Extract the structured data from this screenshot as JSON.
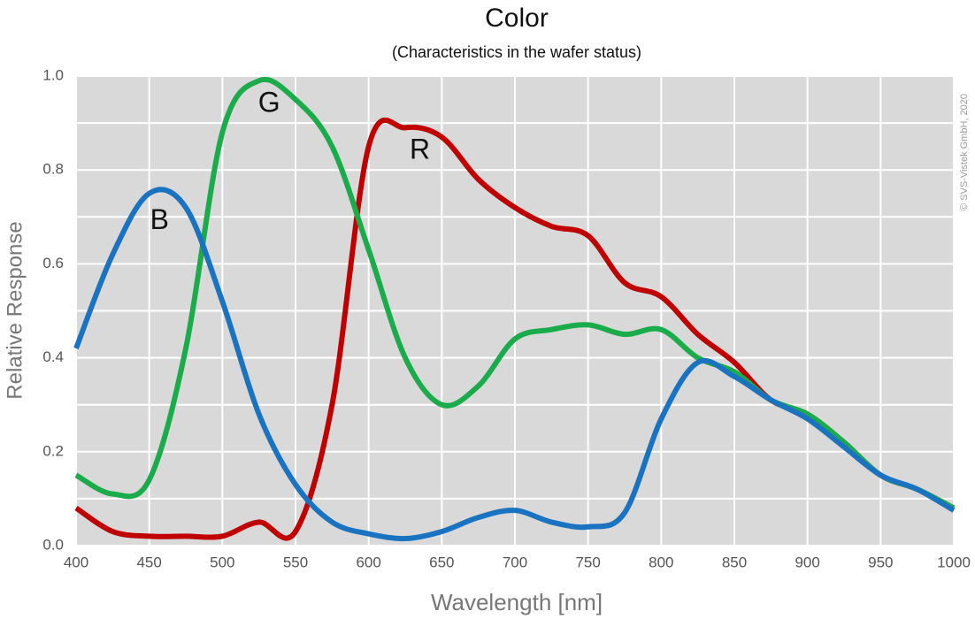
{
  "chart_data": {
    "type": "line",
    "title": "Color",
    "subtitle": "(Characteristics in the wafer status)",
    "x_label": "Wavelength [nm]",
    "y_label": "Relative Response",
    "copyright": "© SVS-Vistek GmbH, 2020",
    "x": [
      400,
      425,
      450,
      475,
      500,
      525,
      550,
      575,
      600,
      625,
      650,
      675,
      700,
      725,
      750,
      775,
      800,
      825,
      850,
      875,
      900,
      925,
      950,
      975,
      1000
    ],
    "series": [
      {
        "name": "R",
        "color": "#c00000",
        "values": [
          0.08,
          0.03,
          0.02,
          0.02,
          0.02,
          0.05,
          0.03,
          0.3,
          0.85,
          0.89,
          0.87,
          0.78,
          0.72,
          0.68,
          0.66,
          0.56,
          0.53,
          0.45,
          0.39,
          0.31,
          0.28,
          0.22,
          0.15,
          0.12,
          0.08
        ]
      },
      {
        "name": "G",
        "color": "#1aab4a",
        "values": [
          0.15,
          0.11,
          0.14,
          0.42,
          0.88,
          0.99,
          0.95,
          0.85,
          0.63,
          0.4,
          0.3,
          0.34,
          0.44,
          0.46,
          0.47,
          0.45,
          0.46,
          0.4,
          0.37,
          0.31,
          0.28,
          0.22,
          0.15,
          0.12,
          0.08
        ]
      },
      {
        "name": "B",
        "color": "#1a73c0",
        "values": [
          0.42,
          0.62,
          0.75,
          0.72,
          0.52,
          0.28,
          0.13,
          0.05,
          0.025,
          0.015,
          0.03,
          0.06,
          0.075,
          0.05,
          0.04,
          0.07,
          0.27,
          0.39,
          0.36,
          0.31,
          0.27,
          0.21,
          0.15,
          0.12,
          0.075
        ]
      }
    ],
    "annotations": [
      {
        "text": "B",
        "x": 457,
        "y": 0.69
      },
      {
        "text": "G",
        "x": 532,
        "y": 0.94
      },
      {
        "text": "R",
        "x": 635,
        "y": 0.84
      }
    ],
    "xlim": [
      400,
      1000
    ],
    "ylim": [
      0,
      1
    ],
    "xticks": [
      400,
      450,
      500,
      550,
      600,
      650,
      700,
      750,
      800,
      850,
      900,
      950,
      1000
    ],
    "yticks": [
      {
        "value": 0,
        "label": "0.0"
      },
      {
        "value": 0.2,
        "label": "0.2"
      },
      {
        "value": 0.4,
        "label": "0.4"
      },
      {
        "value": 0.6,
        "label": "0.6"
      },
      {
        "value": 0.8,
        "label": "0.8"
      },
      {
        "value": 1,
        "label": "1.0"
      }
    ],
    "y_minor_grid": [
      0.1,
      0.3,
      0.5,
      0.7,
      0.9
    ],
    "grid": true
  }
}
